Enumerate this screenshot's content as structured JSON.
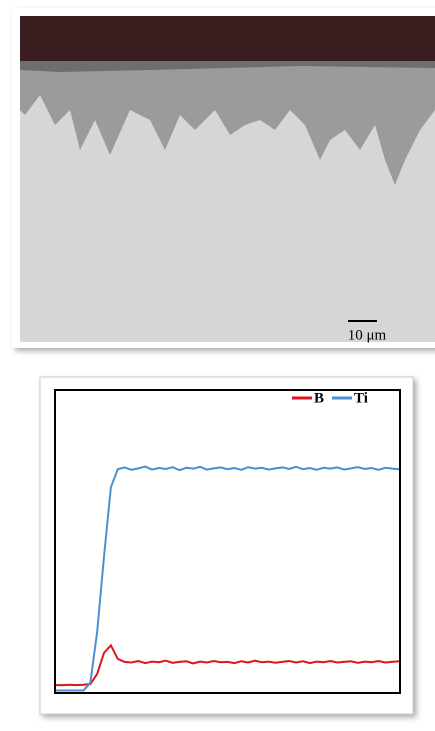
{
  "micrograph": {
    "scale_bar": "10 μm"
  },
  "chart_data": {
    "type": "line",
    "x": [
      0,
      2,
      4,
      6,
      8,
      10,
      12,
      14,
      16,
      18,
      20,
      22,
      24,
      26,
      28,
      30,
      32,
      34,
      36,
      38,
      40,
      42,
      44,
      46,
      48,
      50,
      52,
      54,
      56,
      58,
      60,
      62,
      64,
      66,
      68,
      70,
      72,
      74,
      76,
      78,
      80,
      82,
      84,
      86,
      88,
      90,
      92,
      94,
      96,
      98,
      100
    ],
    "series": [
      {
        "name": "B",
        "color": "#e0141e",
        "values": [
          2.3,
          2.3,
          2.4,
          2.3,
          2.4,
          2.6,
          6,
          13,
          15.5,
          11,
          10,
          9.8,
          10.3,
          9.6,
          10.1,
          9.9,
          10.4,
          9.7,
          10.0,
          10.2,
          9.5,
          10.1,
          9.8,
          10.3,
          9.9,
          10.0,
          9.6,
          10.2,
          9.8,
          10.4,
          9.9,
          10.1,
          9.7,
          10.0,
          10.3,
          9.8,
          10.2,
          9.6,
          10.1,
          9.9,
          10.3,
          9.8,
          10.0,
          10.2,
          9.7,
          10.1,
          9.9,
          10.3,
          9.8,
          10.0,
          10.2
        ]
      },
      {
        "name": "Ti",
        "color": "#4a8fd0",
        "values": [
          0.5,
          0.5,
          0.5,
          0.5,
          0.5,
          3,
          20,
          45,
          68,
          74,
          74.6,
          73.8,
          74.3,
          74.9,
          73.9,
          74.4,
          74.1,
          74.7,
          73.7,
          74.5,
          74.2,
          74.8,
          73.9,
          74.3,
          74.6,
          74.0,
          74.4,
          73.8,
          74.7,
          74.2,
          74.5,
          73.9,
          74.3,
          74.6,
          74.1,
          74.8,
          74.0,
          74.4,
          73.8,
          74.5,
          74.2,
          74.6,
          73.9,
          74.3,
          74.7,
          74.1,
          74.4,
          73.8,
          74.5,
          74.2,
          74.0
        ]
      }
    ],
    "xlim": [
      0,
      100
    ],
    "ylim": [
      0,
      100
    ],
    "legend": "top-right"
  }
}
